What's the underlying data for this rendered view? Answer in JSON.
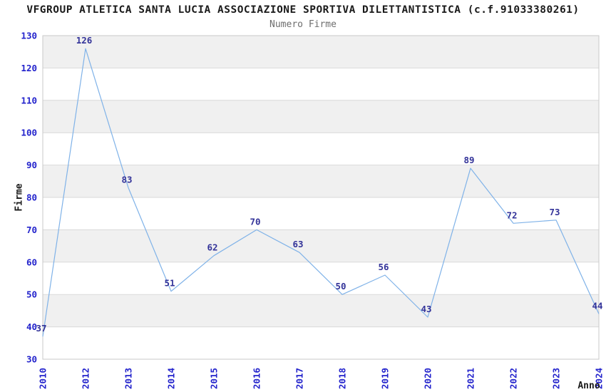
{
  "chart_data": {
    "type": "line",
    "title": "VFGROUP ATLETICA SANTA LUCIA ASSOCIAZIONE SPORTIVA DILETTANTISTICA (c.f.91033380261)",
    "subtitle": "Numero Firme",
    "xlabel": "Anno",
    "ylabel": "Firme",
    "categories": [
      "2010",
      "2012",
      "2013",
      "2014",
      "2015",
      "2016",
      "2017",
      "2018",
      "2019",
      "2020",
      "2021",
      "2022",
      "2023",
      "2024"
    ],
    "series": [
      {
        "name": "Numero Firme",
        "values": [
          37,
          126,
          83,
          51,
          62,
          70,
          63,
          50,
          56,
          43,
          89,
          72,
          73,
          44
        ]
      }
    ],
    "ylim": [
      30,
      130
    ],
    "ytick_step": 10,
    "grid": true,
    "band_fill": "alternating horizontal bands from top",
    "legend": "none",
    "point_labels": "values shown above each point",
    "colors": {
      "line": "#7FB2E8",
      "tick_label": "#2323CC",
      "data_label": "#333399",
      "band": "#F0F0F0",
      "grid": "#D9D9D9",
      "border": "#C9C9C9",
      "title": "#1A1A1A",
      "subtitle": "#6E6E6E",
      "axis_title": "#1A1A1A",
      "background": "#FFFFFF"
    }
  }
}
